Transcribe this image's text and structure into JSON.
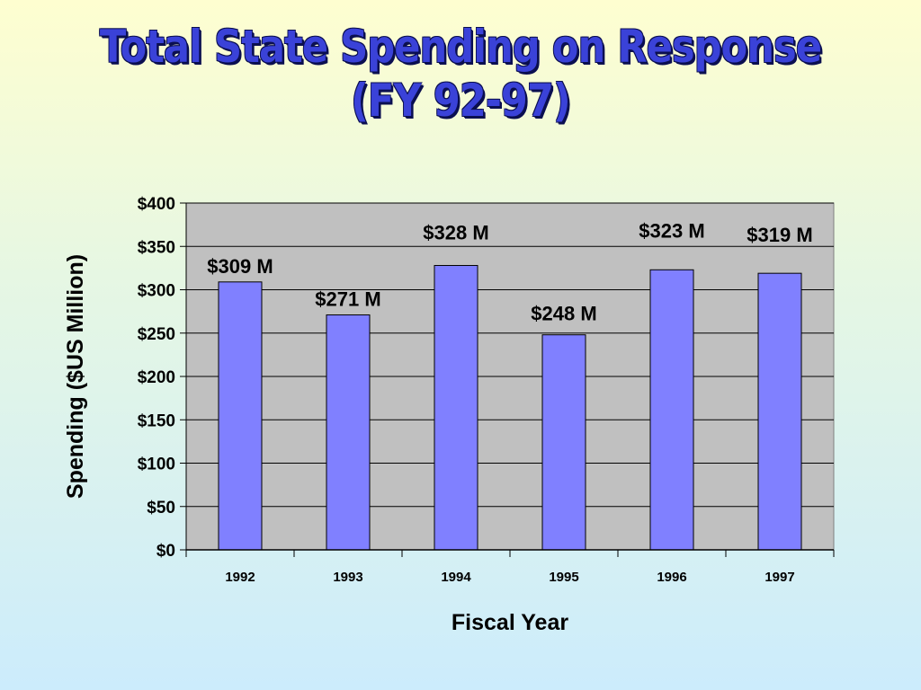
{
  "chart_data": {
    "type": "bar",
    "title": [
      "Total State Spending on Response",
      "(FY 92-97)"
    ],
    "xlabel": "Fiscal Year",
    "ylabel": "Spending ($US Million)",
    "categories": [
      "1992",
      "1993",
      "1994",
      "1995",
      "1996",
      "1997"
    ],
    "values": [
      309,
      271,
      328,
      248,
      323,
      319
    ],
    "data_labels": [
      "$309 M",
      "$271 M",
      "$328 M",
      "$248 M",
      "$323 M",
      "$319 M"
    ],
    "ylim": [
      0,
      400
    ],
    "yticks": [
      0,
      50,
      100,
      150,
      200,
      250,
      300,
      350,
      400
    ],
    "ytick_labels": [
      "$0",
      "$50",
      "$100",
      "$150",
      "$200",
      "$250",
      "$300",
      "$350",
      "$400"
    ],
    "grid": true,
    "legend": "none",
    "colors": {
      "bar": "#8080ff",
      "plot_background": "#c0c0c0",
      "title": "#3a42d8"
    }
  }
}
